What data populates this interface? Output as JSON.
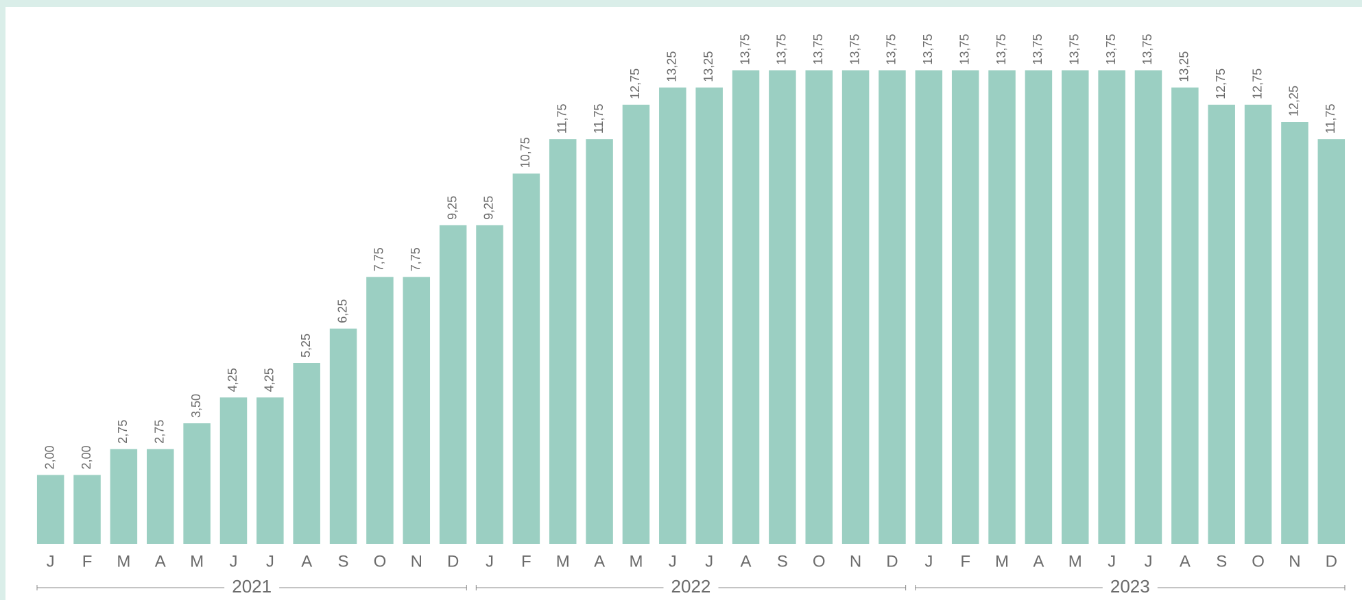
{
  "chart_data": {
    "type": "bar",
    "categories": [
      "J",
      "F",
      "M",
      "A",
      "M",
      "J",
      "J",
      "A",
      "S",
      "O",
      "N",
      "D",
      "J",
      "F",
      "M",
      "A",
      "M",
      "J",
      "J",
      "A",
      "S",
      "O",
      "N",
      "D",
      "J",
      "F",
      "M",
      "A",
      "M",
      "J",
      "J",
      "A",
      "S",
      "O",
      "N",
      "D"
    ],
    "values": [
      2.0,
      2.0,
      2.75,
      2.75,
      3.5,
      4.25,
      4.25,
      5.25,
      6.25,
      7.75,
      7.75,
      9.25,
      9.25,
      10.75,
      11.75,
      11.75,
      12.75,
      13.25,
      13.25,
      13.75,
      13.75,
      13.75,
      13.75,
      13.75,
      13.75,
      13.75,
      13.75,
      13.75,
      13.75,
      13.75,
      13.75,
      13.25,
      12.75,
      12.75,
      12.25,
      11.75
    ],
    "value_labels": [
      "2,00",
      "2,00",
      "2,75",
      "2,75",
      "3,50",
      "4,25",
      "4,25",
      "5,25",
      "6,25",
      "7,75",
      "7,75",
      "9,25",
      "9,25",
      "10,75",
      "11,75",
      "11,75",
      "12,75",
      "13,25",
      "13,25",
      "13,75",
      "13,75",
      "13,75",
      "13,75",
      "13,75",
      "13,75",
      "13,75",
      "13,75",
      "13,75",
      "13,75",
      "13,75",
      "13,75",
      "13,25",
      "12,75",
      "12,75",
      "12,25",
      "11,75"
    ],
    "years": [
      "2021",
      "2022",
      "2023"
    ],
    "color": "#9bcfc2",
    "ylim": [
      0,
      14
    ]
  }
}
